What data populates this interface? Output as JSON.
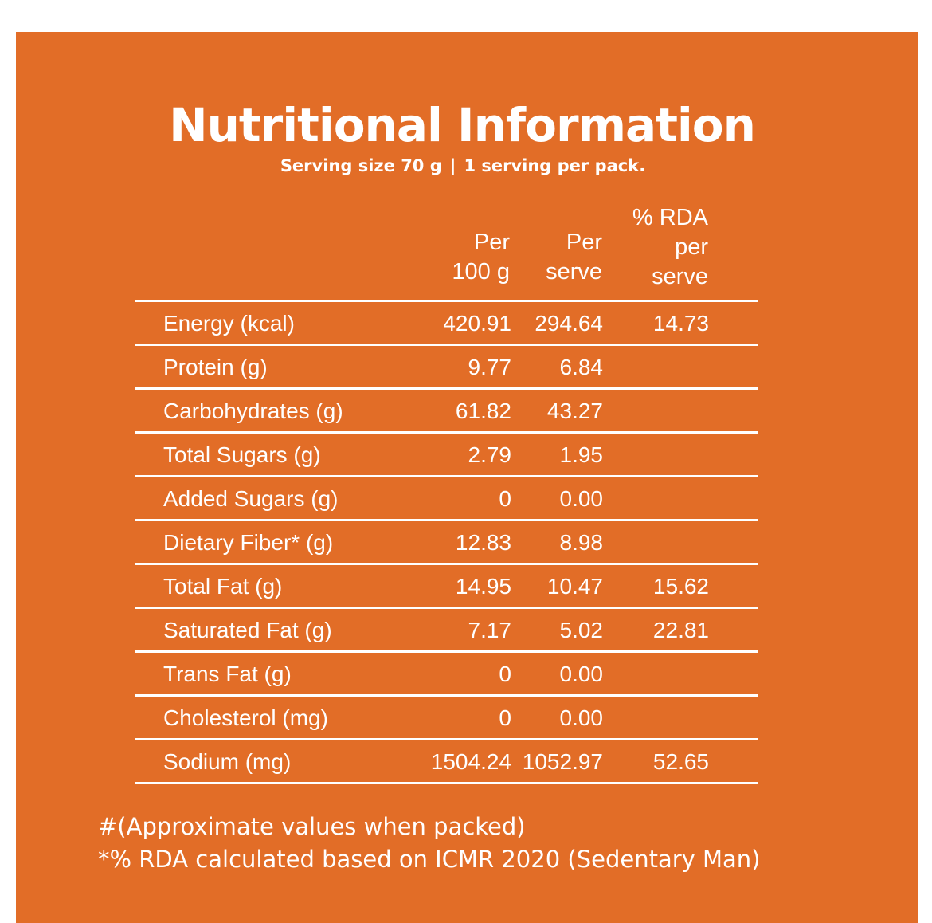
{
  "title": "Nutritional Information",
  "subtitle": {
    "serving_size": "Serving size 70 g",
    "separator": "|",
    "servings": "1 serving per pack."
  },
  "columns": {
    "per_100g": "Per\n100 g",
    "per_serve": "Per\nserve",
    "rda": "% RDA\nper\nserve"
  },
  "rows": [
    {
      "name": "Energy (kcal)",
      "per_100g": "420.91",
      "per_serve": "294.64",
      "rda": "14.73"
    },
    {
      "name": "Protein (g)",
      "per_100g": "9.77",
      "per_serve": "6.84",
      "rda": ""
    },
    {
      "name": "Carbohydrates (g)",
      "per_100g": "61.82",
      "per_serve": "43.27",
      "rda": ""
    },
    {
      "name": "Total Sugars (g)",
      "per_100g": "2.79",
      "per_serve": "1.95",
      "rda": ""
    },
    {
      "name": "Added Sugars (g)",
      "per_100g": "0",
      "per_serve": "0.00",
      "rda": ""
    },
    {
      "name": "Dietary Fiber* (g)",
      "per_100g": "12.83",
      "per_serve": "8.98",
      "rda": ""
    },
    {
      "name": "Total Fat (g)",
      "per_100g": "14.95",
      "per_serve": "10.47",
      "rda": "15.62"
    },
    {
      "name": "Saturated Fat (g)",
      "per_100g": "7.17",
      "per_serve": "5.02",
      "rda": "22.81"
    },
    {
      "name": "Trans Fat (g)",
      "per_100g": "0",
      "per_serve": "0.00",
      "rda": ""
    },
    {
      "name": "Cholesterol (mg)",
      "per_100g": "0",
      "per_serve": "0.00",
      "rda": ""
    },
    {
      "name": "Sodium (mg)",
      "per_100g": "1504.24",
      "per_serve": "1052.97",
      "rda": "52.65"
    }
  ],
  "footnotes": {
    "approx": "#(Approximate values when packed)",
    "rda_note": "*% RDA calculated based on ICMR 2020 (Sedentary Man)"
  },
  "colors": {
    "background": "#e26d27",
    "text": "#ffffff",
    "page": "#ffffff"
  }
}
